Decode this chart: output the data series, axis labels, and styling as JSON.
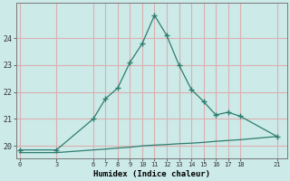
{
  "xlabel": "Humidex (Indice chaleur)",
  "bg_color": "#cceae8",
  "grid_color_h": "#e8c8c8",
  "grid_color_v": "#e8c8c8",
  "line_color": "#2e7d6e",
  "x_ticks": [
    0,
    3,
    6,
    7,
    8,
    9,
    10,
    11,
    12,
    13,
    14,
    15,
    16,
    17,
    18,
    21
  ],
  "line1_x": [
    0,
    3,
    6,
    7,
    8,
    9,
    10,
    11,
    12,
    13,
    14,
    15,
    16,
    17,
    18,
    21
  ],
  "line1_y": [
    19.85,
    19.85,
    21.0,
    21.75,
    22.15,
    23.1,
    23.8,
    24.85,
    24.1,
    23.0,
    22.1,
    21.65,
    21.15,
    21.25,
    21.1,
    20.35
  ],
  "line2_x": [
    0,
    3,
    6,
    7,
    8,
    9,
    10,
    11,
    12,
    13,
    14,
    15,
    16,
    17,
    18,
    21
  ],
  "line2_y": [
    19.75,
    19.75,
    19.85,
    19.88,
    19.92,
    19.95,
    20.0,
    20.03,
    20.05,
    20.08,
    20.1,
    20.13,
    20.17,
    20.2,
    20.23,
    20.35
  ],
  "ylim": [
    19.55,
    25.3
  ],
  "yticks": [
    20,
    21,
    22,
    23,
    24
  ],
  "xlim": [
    -0.3,
    21.8
  ]
}
